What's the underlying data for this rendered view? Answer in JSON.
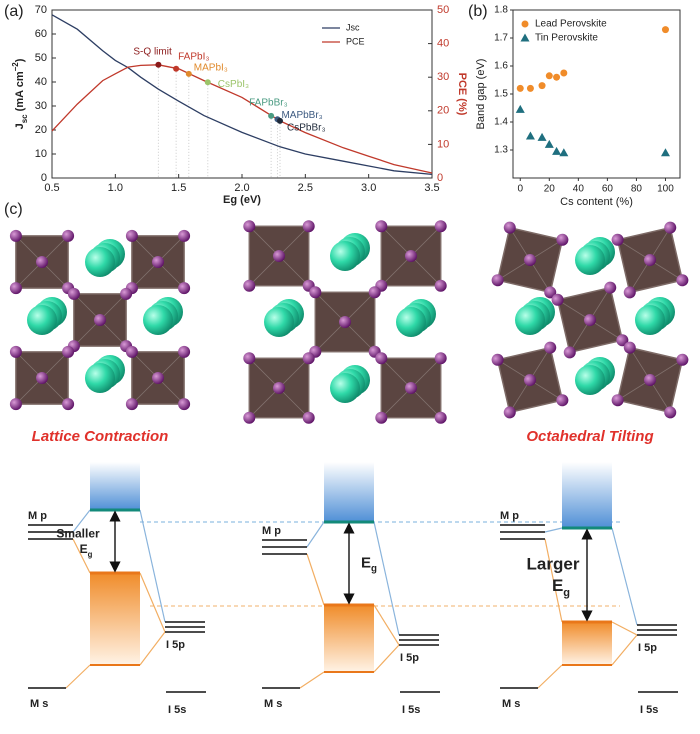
{
  "chart_data": [
    {
      "type": "line",
      "x": [
        0.5,
        0.7,
        0.9,
        1.0,
        1.1,
        1.2,
        1.34,
        1.5,
        1.7,
        2.0,
        2.3,
        2.5,
        2.8,
        3.0,
        3.2,
        3.5
      ],
      "series": [
        {
          "name": "Jsc",
          "color": "#2d3e63",
          "values": [
            68,
            62,
            53,
            49,
            46,
            42,
            37,
            32,
            26,
            19,
            13,
            10,
            7,
            5,
            3,
            1.5
          ]
        },
        {
          "name": "PCE",
          "color": "#c0392b",
          "axis": "y2",
          "values": [
            14,
            22,
            29,
            31,
            33,
            33.5,
            33.7,
            32.5,
            29,
            24,
            17,
            13.5,
            9,
            6.5,
            4,
            1.5
          ]
        }
      ],
      "xlim": [
        0.5,
        3.5
      ],
      "xticks": [
        0.5,
        {
          "value": 1,
          "label": "1.0"
        },
        1.5,
        {
          "value": 2,
          "label": "2.0"
        },
        2.5,
        {
          "value": 3,
          "label": "3.0"
        },
        3.5
      ],
      "ylim": [
        0,
        70
      ],
      "yticks": [
        0,
        10,
        20,
        30,
        40,
        50,
        60,
        70
      ],
      "y2lim": [
        0,
        50
      ],
      "y2ticks": [
        0,
        10,
        20,
        30,
        40,
        50
      ],
      "xlabel": "Eg (eV)",
      "ylabel": [
        "J",
        "sc",
        " (mA cm",
        "−2",
        ")"
      ],
      "y2label": "PCE (%)",
      "legend": "upper right",
      "annotations": [
        {
          "label": "S-Q limit",
          "x": 1.34,
          "y": 33.7,
          "color": "#8b1a1a"
        },
        {
          "label": "FAPbI₃",
          "x": 1.48,
          "y": 32.5,
          "color": "#c0392b"
        },
        {
          "label": "MAPbI₃",
          "x": 1.58,
          "y": 31,
          "color": "#e08a2c"
        },
        {
          "label": "CsPbI₃",
          "x": 1.73,
          "y": 28.5,
          "color": "#9cc46a"
        },
        {
          "label": "FAPbBr₃",
          "x": 2.23,
          "y": 18.5,
          "color": "#4a9b82"
        },
        {
          "label": "MAPbBr₃",
          "x": 2.28,
          "y": 17.5,
          "color": "#3d5a80"
        },
        {
          "label": "CsPbBr₃",
          "x": 2.3,
          "y": 17,
          "color": "#1f2a3a"
        }
      ]
    },
    {
      "type": "scatter",
      "series": [
        {
          "name": "Lead Perovskite",
          "color": "#f08c2a",
          "marker": "circle",
          "x": [
            0,
            7,
            15,
            20,
            25,
            30,
            100
          ],
          "values": [
            1.52,
            1.52,
            1.53,
            1.565,
            1.56,
            1.575,
            1.73
          ]
        },
        {
          "name": "Tin Perovskite",
          "color": "#1f6f7f",
          "marker": "triangle",
          "x": [
            0,
            7,
            15,
            20,
            25,
            30,
            100
          ],
          "values": [
            1.445,
            1.35,
            1.345,
            1.32,
            1.295,
            1.29,
            1.29
          ]
        }
      ],
      "xlim": [
        -5,
        110
      ],
      "xticks": [
        0,
        20,
        40,
        60,
        80,
        100
      ],
      "ylim": [
        1.2,
        1.8
      ],
      "yticks": [
        1.3,
        1.4,
        1.5,
        1.6,
        1.7,
        1.8
      ],
      "xlabel": "Cs content (%)",
      "ylabel": "Band gap (eV)",
      "legend": "upper left"
    }
  ],
  "figure": {
    "panel_labels": [
      "(a)",
      "(b)",
      "(c)"
    ],
    "structure_labels": [
      "Lattice Contraction",
      "Octahedral Tilting"
    ],
    "diagrams": [
      {
        "m_p": "M p",
        "m_s": "M s",
        "i_5p": "I 5p",
        "i_5s": "I 5s",
        "gap": {
          "word": "Smaller",
          "symbol": "E",
          "sub": "g"
        }
      },
      {
        "m_p": "M p",
        "m_s": "M s",
        "i_5p": "I 5p",
        "i_5s": "I 5s",
        "gap": {
          "symbol": "E",
          "sub": "g"
        }
      },
      {
        "m_p": "M p",
        "m_s": "M s",
        "i_5p": "I 5p",
        "i_5s": "I 5s",
        "gap": {
          "word": "Larger",
          "symbol": "E",
          "sub": "g"
        }
      }
    ]
  }
}
